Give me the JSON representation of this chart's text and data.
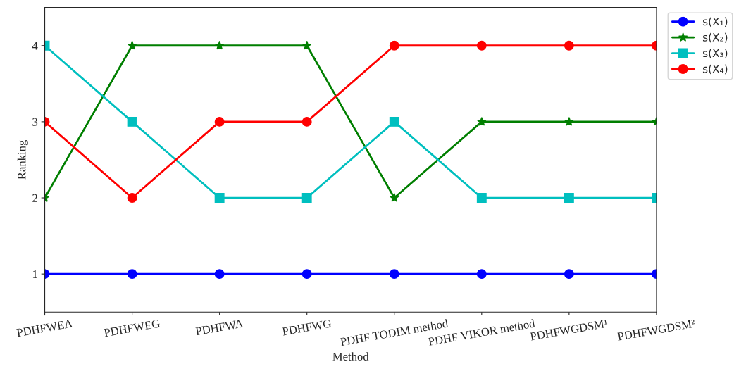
{
  "chart_data": {
    "type": "line",
    "xlabel": "Method",
    "ylabel": "Ranking",
    "categories": [
      "PDHFWEA",
      "PDHFWEG",
      "PDHFWA",
      "PDHFWG",
      "PDHF TODIM method",
      "PDHF VIKOR method",
      "PDHFWGDSM¹",
      "PDHFWGDSM²"
    ],
    "series": [
      {
        "name": "s(X₁)",
        "color": "#0000ff",
        "marker": "circle",
        "values": [
          1,
          1,
          1,
          1,
          1,
          1,
          1,
          1
        ]
      },
      {
        "name": "s(X₂)",
        "color": "#007f00",
        "marker": "star",
        "values": [
          2,
          4,
          4,
          4,
          2,
          3,
          3,
          3
        ]
      },
      {
        "name": "s(X₃)",
        "color": "#00bfbf",
        "marker": "square",
        "values": [
          4,
          3,
          2,
          2,
          3,
          2,
          2,
          2
        ]
      },
      {
        "name": "s(X₄)",
        "color": "#ff0000",
        "marker": "circle",
        "values": [
          3,
          2,
          3,
          3,
          4,
          4,
          4,
          4
        ]
      }
    ],
    "ylim": [
      0.5,
      4.5
    ],
    "yticks": [
      1,
      2,
      3,
      4
    ],
    "grid": false,
    "legend": "top right",
    "line_style": "solid"
  }
}
